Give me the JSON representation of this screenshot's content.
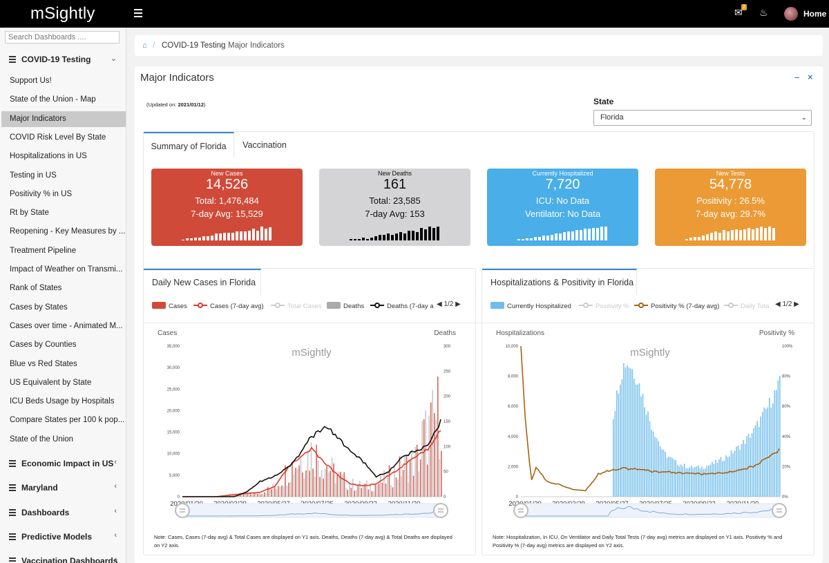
{
  "app": {
    "logo": "mSightly",
    "home": "Home",
    "notification_count": "2"
  },
  "sidebar": {
    "search_placeholder": "Search Dashboards ....",
    "group_covid": "COVID-19 Testing",
    "items": [
      "Support Us!",
      "State of the Union - Map",
      "Major Indicators",
      "COVID Risk Level By State",
      "Hospitalizations in US",
      "Testing in US",
      "Positivity % in US",
      "Rt by State",
      "Reopening - Key Measures by ...",
      "Treatment Pipeline",
      "Impact of Weather on Transmi...",
      "Rank of States",
      "Cases by States",
      "Cases over time - Animated M...",
      "Cases by Counties",
      "Blue vs Red States",
      "US Equivalent by State",
      "ICU Beds Usage by Hospitals",
      "Compare States per 100 k pop...",
      "State of the Union"
    ],
    "groups": [
      "Economic Impact in US",
      "Maryland",
      "Dashboards",
      "Predictive Models",
      "Vaccination Dashboards"
    ]
  },
  "breadcrumb": {
    "section": "COVID-19 Testing",
    "page": "Major Indicators"
  },
  "panel": {
    "title": "Major Indicators",
    "updated_prefix": "(Updated on: ",
    "updated_date": "2021/01/12",
    "updated_suffix": ")",
    "state_label": "State",
    "state_value": "Florida",
    "tabs": [
      "Summary of Florida",
      "Vaccination"
    ]
  },
  "cards": [
    {
      "title": "New Cases",
      "value": "14,526",
      "line1": "Total: 1,476,484",
      "line2": "7-day Avg: 15,529",
      "color": "#d04a39",
      "spark": [
        1,
        2,
        2,
        3,
        3,
        4,
        4,
        5,
        7,
        7,
        8,
        8,
        8,
        9,
        9,
        9,
        10,
        12,
        10,
        14,
        12,
        13
      ]
    },
    {
      "title": "New Deaths",
      "value": "161",
      "line1": "Total: 23,585",
      "line2": "7-day Avg: 153",
      "color": "#d4d4d6",
      "spark": [
        1,
        1,
        1,
        2,
        1,
        2,
        3,
        4,
        4,
        5,
        4,
        5,
        6,
        5,
        7,
        7,
        6,
        9,
        8,
        10,
        9,
        10
      ]
    },
    {
      "title": "Currently Hospitalized",
      "value": "7,720",
      "line1": "ICU: No Data",
      "line2": "Ventilator: No Data",
      "color": "#4aaee9",
      "spark": [
        1,
        1,
        2,
        2,
        3,
        3,
        4,
        4,
        5,
        6,
        6,
        7,
        8,
        8,
        9,
        9,
        10,
        10,
        11,
        11,
        12,
        12
      ]
    },
    {
      "title": "New Tests",
      "value": "54,778",
      "line1": "Positivity : 26.5%",
      "line2": "7-day avg: 29.7%",
      "color": "#eb9a35",
      "spark": [
        1,
        2,
        3,
        3,
        4,
        5,
        6,
        7,
        6,
        8,
        7,
        8,
        9,
        8,
        9,
        10,
        9,
        10,
        11,
        10,
        11,
        10
      ]
    }
  ],
  "chart_data": [
    {
      "type": "bar",
      "title": "Daily New Cases in Florida",
      "watermark": "mSightly",
      "legend": [
        "Cases",
        "Cases (7-day avg)",
        "Total Cases",
        "Deaths",
        "Deaths (7-day a"
      ],
      "pager": "1/2",
      "ylabel": "Cases",
      "y2label": "Deaths",
      "ylim": [
        0,
        35000
      ],
      "y2lim": [
        0,
        300
      ],
      "yticks": [
        "0",
        "5,000",
        "10,000",
        "15,000",
        "20,000",
        "25,000",
        "30,000",
        "35,000"
      ],
      "y2ticks": [
        "0",
        "50",
        "100",
        "150",
        "200",
        "250",
        "300"
      ],
      "xticks": [
        "2020/01/30",
        "2020/03/29",
        "2020/05/27",
        "2020/07/25",
        "2020/09/22",
        "2020/11/20"
      ],
      "series": [
        {
          "name": "Cases (7-day avg)",
          "axis": "y",
          "color": "#e0392a",
          "x": [
            0,
            0.13,
            0.2,
            0.3,
            0.36,
            0.4,
            0.45,
            0.5,
            0.55,
            0.6,
            0.65,
            0.7,
            0.75,
            0.8,
            0.85,
            0.9,
            0.95,
            1.0
          ],
          "values": [
            0,
            0,
            500,
            1000,
            2500,
            6000,
            9000,
            11000,
            8000,
            5000,
            3000,
            2500,
            3000,
            5000,
            7000,
            9000,
            11000,
            15500
          ]
        },
        {
          "name": "Deaths (7-day avg)",
          "axis": "y2",
          "color": "#111111",
          "x": [
            0,
            0.2,
            0.25,
            0.3,
            0.35,
            0.4,
            0.45,
            0.5,
            0.55,
            0.6,
            0.65,
            0.7,
            0.75,
            0.8,
            0.85,
            0.9,
            0.95,
            1.0
          ],
          "values": [
            0,
            0,
            10,
            30,
            40,
            55,
            80,
            120,
            140,
            120,
            90,
            70,
            40,
            50,
            80,
            90,
            100,
            150
          ]
        }
      ],
      "note": "Note: Cases, Cases (7-day avg) & Total Cases are displayed on Y1 axis. Deaths, Deaths (7-day avg) & Total Deaths are displayed on Y2 axis."
    },
    {
      "type": "bar",
      "title": "Hospitalizations & Positivity in Florida",
      "watermark": "mSightly",
      "legend": [
        "Currently Hospitalized",
        "Positivity %",
        "Positivity % (7-day avg)",
        "Daily Tota"
      ],
      "pager": "1/2",
      "ylabel": "Hospitalizations",
      "y2label": "Positivity %",
      "ylim": [
        0,
        10000
      ],
      "y2lim": [
        0,
        100
      ],
      "yticks": [
        "0",
        "2,000",
        "4,000",
        "6,000",
        "8,000",
        "10,000"
      ],
      "y2ticks": [
        "0%",
        "20%",
        "40%",
        "60%",
        "80%",
        "100%"
      ],
      "xticks": [
        "2020/01/30",
        "2020/03/29",
        "2020/05/27",
        "2020/07/25",
        "2020/09/22",
        "2020/11/20"
      ],
      "series": [
        {
          "name": "Currently Hospitalized",
          "axis": "y",
          "color": "#6fbcea",
          "x": [
            0.35,
            0.38,
            0.4,
            0.42,
            0.45,
            0.5,
            0.55,
            0.6,
            0.65,
            0.7,
            0.75,
            0.8,
            0.85,
            0.9,
            0.95,
            1.0
          ],
          "values": [
            5000,
            8000,
            9200,
            9000,
            8000,
            5000,
            3000,
            2300,
            2000,
            2000,
            2300,
            2800,
            3500,
            4500,
            6000,
            7700
          ]
        },
        {
          "name": "Positivity % (7-day avg)",
          "axis": "y2",
          "color": "#a8620f",
          "x": [
            0,
            0.02,
            0.04,
            0.06,
            0.1,
            0.15,
            0.2,
            0.25,
            0.3,
            0.35,
            0.4,
            0.5,
            0.6,
            0.7,
            0.8,
            0.9,
            0.95,
            1.0
          ],
          "values": [
            100,
            45,
            10,
            20,
            10,
            8,
            5,
            4,
            15,
            18,
            19,
            17,
            16,
            15,
            16,
            20,
            25,
            31
          ]
        }
      ],
      "note": "Note: Hospitalization, In ICU, On Ventilator and Daily Total Tests (7-day avg) metrics are displayed on Y1 axis. Positivity % and Positivity % (7-day avg) metrics are displayed on Y2 axis."
    }
  ]
}
